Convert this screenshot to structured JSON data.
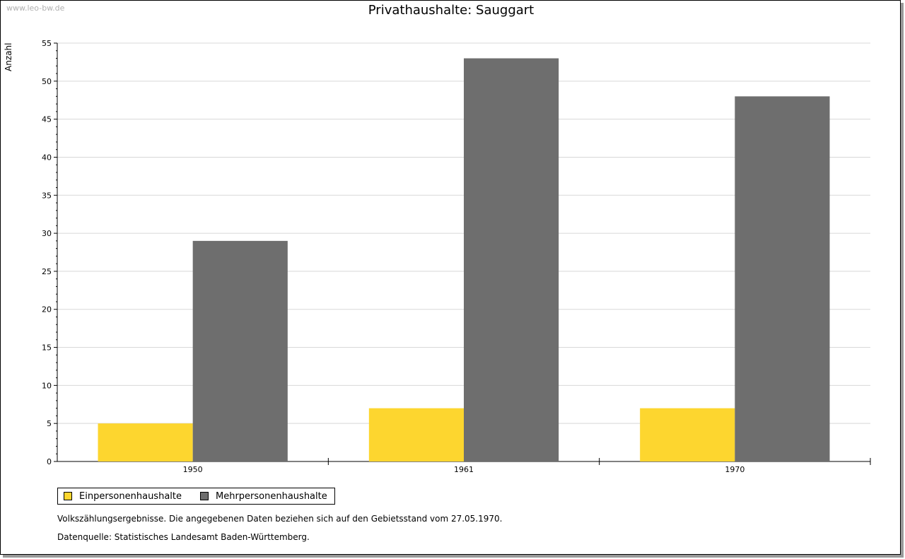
{
  "watermark": "www.leo-bw.de",
  "notes": {
    "line1": "Volkszählungsergebnisse. Die angegebenen Daten beziehen sich auf den Gebietsstand vom 27.05.1970.",
    "line2": "Datenquelle: Statistisches Landesamt Baden-Württemberg."
  },
  "chart_data": {
    "type": "bar",
    "title": "Privathaushalte: Sauggart",
    "xlabel": "",
    "ylabel": "Anzahl",
    "categories": [
      "1950",
      "1961",
      "1970"
    ],
    "series": [
      {
        "name": "Einpersonenhaushalte",
        "color": "#fdd62f",
        "values": [
          5,
          7,
          7
        ]
      },
      {
        "name": "Mehrpersonenhaushalte",
        "color": "#6e6e6e",
        "values": [
          29,
          53,
          48
        ]
      }
    ],
    "ylim": [
      0,
      55
    ],
    "yticks": [
      0,
      5,
      10,
      15,
      20,
      25,
      30,
      35,
      40,
      45,
      50,
      55
    ],
    "grid": true,
    "legend": "bottom-left"
  }
}
